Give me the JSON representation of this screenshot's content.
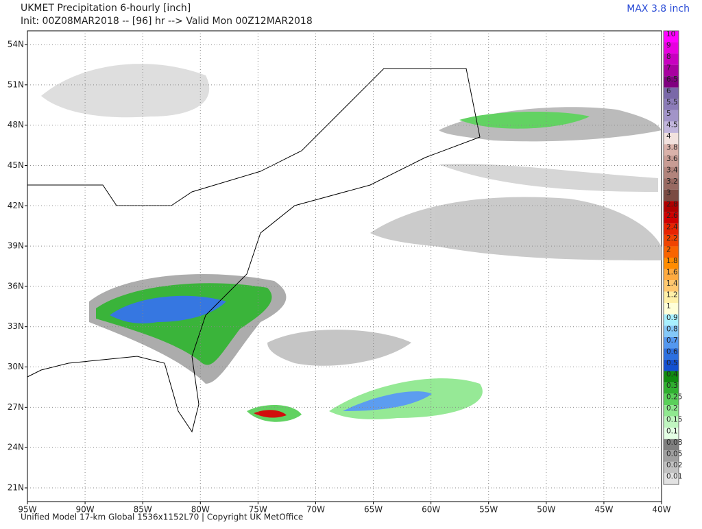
{
  "header": {
    "title": "UKMET Precipitation 6-hourly [inch]",
    "subtitle": "Init: 00Z08MAR2018 -- [96] hr --> Valid Mon 00Z12MAR2018",
    "max_label": "MAX 3.8 inch"
  },
  "map": {
    "lat_labels": [
      "54N",
      "51N",
      "48N",
      "45N",
      "42N",
      "39N",
      "36N",
      "33N",
      "30N",
      "27N",
      "24N",
      "21N"
    ],
    "lon_labels": [
      "95W",
      "90W",
      "85W",
      "80W",
      "75W",
      "70W",
      "65W",
      "60W",
      "55W",
      "50W",
      "45W",
      "40W"
    ]
  },
  "colorbar": {
    "levels": [
      10,
      9,
      8,
      7,
      6.5,
      6,
      5.5,
      5,
      4.5,
      4,
      3.8,
      3.6,
      3.4,
      3.2,
      3,
      2.8,
      2.6,
      2.4,
      2.2,
      2,
      1.8,
      1.6,
      1.4,
      1.2,
      1,
      0.9,
      0.8,
      0.7,
      0.6,
      0.5,
      0.4,
      0.3,
      0.25,
      0.2,
      0.15,
      0.1,
      0.08,
      0.05,
      0.02,
      0.01
    ],
    "colors": [
      "#ff00ff",
      "#e800e0",
      "#c800c0",
      "#a800a0",
      "#800080",
      "#7a68a8",
      "#8c7cb8",
      "#a294c8",
      "#c2b6dc",
      "#f2e2de",
      "#dab2aa",
      "#c89c94",
      "#b2847c",
      "#986a62",
      "#7a4a42",
      "#b00000",
      "#d00000",
      "#e82400",
      "#f04400",
      "#f86400",
      "#ff8c00",
      "#ffaa40",
      "#ffc870",
      "#fff0a8",
      "#ffffd8",
      "#a8f0ff",
      "#84c8f8",
      "#5498f0",
      "#2c70e0",
      "#1450d0",
      "#108c10",
      "#30b030",
      "#5ad05a",
      "#90e890",
      "#c0f5c0",
      "#e4ffe4",
      "#808080",
      "#a0a0a0",
      "#c2c2c2",
      "#e2e2e2"
    ]
  },
  "footer": "Unified Model 17-km Global 1536x1152L70 | Copyright UK MetOffice"
}
